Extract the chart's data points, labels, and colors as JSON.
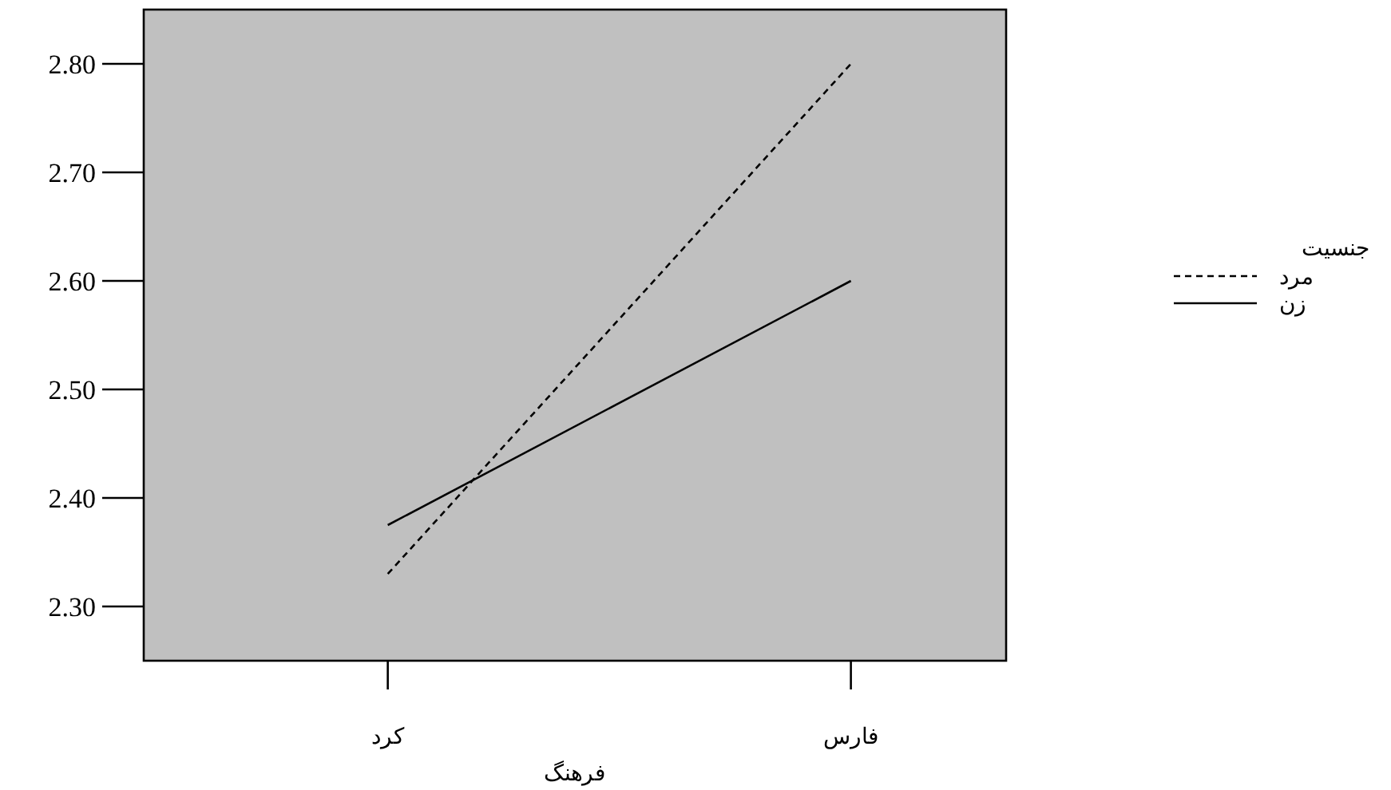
{
  "chart_data": {
    "type": "line",
    "xlabel": "فرهنگ",
    "legend_title": "جنسیت",
    "categories": [
      "کرد",
      "فارس"
    ],
    "series": [
      {
        "name": "مرد",
        "color": "#000000",
        "line_style": "dashed",
        "values": [
          2.33,
          2.8
        ]
      },
      {
        "name": "زن",
        "color": "#000000",
        "line_style": "solid",
        "values": [
          2.375,
          2.6
        ]
      }
    ],
    "ylim": [
      2.25,
      2.85
    ],
    "yticks": [
      {
        "value": 2.3,
        "label": "2.30"
      },
      {
        "value": 2.4,
        "label": "2.40"
      },
      {
        "value": 2.5,
        "label": "2.50"
      },
      {
        "value": 2.6,
        "label": "2.60"
      },
      {
        "value": 2.7,
        "label": "2.70"
      },
      {
        "value": 2.8,
        "label": "2.80"
      }
    ],
    "grid": false,
    "legend": "right",
    "marker": "none"
  }
}
